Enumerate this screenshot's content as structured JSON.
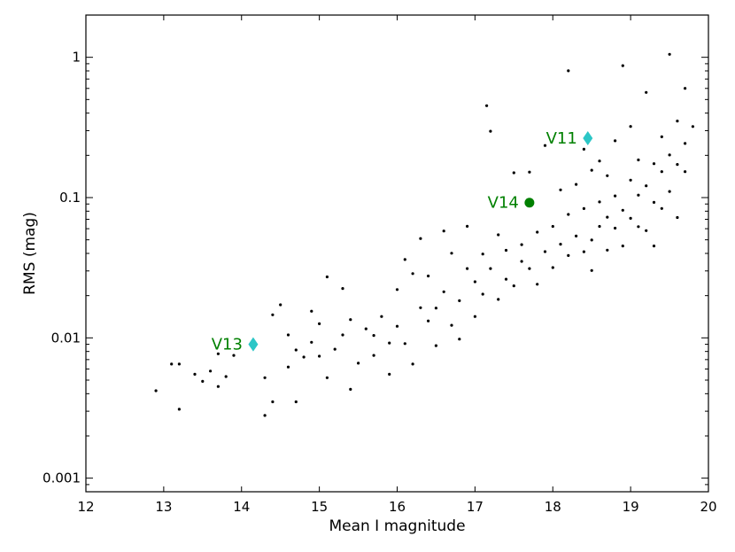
{
  "chart_data": {
    "type": "scatter",
    "xlabel": "Mean I magnitude",
    "ylabel": "RMS (mag)",
    "xlim": [
      12,
      20
    ],
    "ylim": [
      0.0008,
      2.0
    ],
    "yscale": "log",
    "grid": false,
    "xticks": [
      {
        "value": 12,
        "label": "12"
      },
      {
        "value": 13,
        "label": "13"
      },
      {
        "value": 14,
        "label": "14"
      },
      {
        "value": 15,
        "label": "15"
      },
      {
        "value": 16,
        "label": "16"
      },
      {
        "value": 17,
        "label": "17"
      },
      {
        "value": 18,
        "label": "18"
      },
      {
        "value": 19,
        "label": "19"
      },
      {
        "value": 20,
        "label": "20"
      }
    ],
    "yticks": [
      {
        "value": 0.001,
        "label": "0.001"
      },
      {
        "value": 0.01,
        "label": "0.01"
      },
      {
        "value": 0.1,
        "label": "0.1"
      },
      {
        "value": 1,
        "label": "1"
      }
    ],
    "point_color": "#000000",
    "points": [
      [
        12.9,
        0.0042
      ],
      [
        13.1,
        0.0065
      ],
      [
        13.2,
        0.0065
      ],
      [
        13.2,
        0.0031
      ],
      [
        13.4,
        0.0055
      ],
      [
        13.5,
        0.0049
      ],
      [
        13.6,
        0.0058
      ],
      [
        13.7,
        0.0077
      ],
      [
        13.7,
        0.0045
      ],
      [
        13.8,
        0.0053
      ],
      [
        13.9,
        0.0075
      ],
      [
        14.3,
        0.0052
      ],
      [
        14.3,
        0.0028
      ],
      [
        14.4,
        0.0035
      ],
      [
        14.4,
        0.0146
      ],
      [
        14.5,
        0.0172
      ],
      [
        14.6,
        0.0105
      ],
      [
        14.6,
        0.0062
      ],
      [
        14.7,
        0.0082
      ],
      [
        14.7,
        0.0035
      ],
      [
        14.8,
        0.0073
      ],
      [
        14.9,
        0.0093
      ],
      [
        14.9,
        0.0155
      ],
      [
        15.0,
        0.0074
      ],
      [
        15.0,
        0.0126
      ],
      [
        15.1,
        0.0052
      ],
      [
        15.1,
        0.0272
      ],
      [
        15.2,
        0.0083
      ],
      [
        15.3,
        0.0225
      ],
      [
        15.3,
        0.0105
      ],
      [
        15.4,
        0.0043
      ],
      [
        15.4,
        0.0135
      ],
      [
        15.5,
        0.0066
      ],
      [
        15.6,
        0.0116
      ],
      [
        15.7,
        0.0075
      ],
      [
        15.7,
        0.0104
      ],
      [
        15.8,
        0.0142
      ],
      [
        15.9,
        0.0092
      ],
      [
        15.9,
        0.0055
      ],
      [
        16.0,
        0.0121
      ],
      [
        16.0,
        0.0221
      ],
      [
        16.1,
        0.0362
      ],
      [
        16.1,
        0.0091
      ],
      [
        16.2,
        0.0287
      ],
      [
        16.2,
        0.0065
      ],
      [
        16.3,
        0.0164
      ],
      [
        16.3,
        0.0511
      ],
      [
        16.4,
        0.0132
      ],
      [
        16.4,
        0.0276
      ],
      [
        16.5,
        0.0088
      ],
      [
        16.5,
        0.0163
      ],
      [
        16.6,
        0.0578
      ],
      [
        16.6,
        0.0213
      ],
      [
        16.7,
        0.0123
      ],
      [
        16.7,
        0.0401
      ],
      [
        16.8,
        0.0184
      ],
      [
        16.8,
        0.0098
      ],
      [
        16.9,
        0.0312
      ],
      [
        16.9,
        0.0624
      ],
      [
        17.0,
        0.0142
      ],
      [
        17.0,
        0.0251
      ],
      [
        17.1,
        0.0396
      ],
      [
        17.1,
        0.0205
      ],
      [
        17.15,
        0.452
      ],
      [
        17.2,
        0.0312
      ],
      [
        17.2,
        0.297
      ],
      [
        17.3,
        0.0188
      ],
      [
        17.3,
        0.0543
      ],
      [
        17.4,
        0.0421
      ],
      [
        17.4,
        0.0262
      ],
      [
        17.5,
        0.1503
      ],
      [
        17.5,
        0.0235
      ],
      [
        17.6,
        0.0351
      ],
      [
        17.6,
        0.0462
      ],
      [
        17.7,
        0.1521
      ],
      [
        17.7,
        0.0312
      ],
      [
        17.8,
        0.0567
      ],
      [
        17.8,
        0.0241
      ],
      [
        17.9,
        0.2351
      ],
      [
        17.9,
        0.0412
      ],
      [
        18.0,
        0.0623
      ],
      [
        18.0,
        0.0317
      ],
      [
        18.1,
        0.0465
      ],
      [
        18.1,
        0.1135
      ],
      [
        18.2,
        0.0386
      ],
      [
        18.2,
        0.8012
      ],
      [
        18.2,
        0.0758
      ],
      [
        18.3,
        0.0532
      ],
      [
        18.3,
        0.1241
      ],
      [
        18.4,
        0.0411
      ],
      [
        18.4,
        0.0835
      ],
      [
        18.4,
        0.2212
      ],
      [
        18.5,
        0.0498
      ],
      [
        18.5,
        0.1567
      ],
      [
        18.5,
        0.0302
      ],
      [
        18.6,
        0.0931
      ],
      [
        18.6,
        0.0623
      ],
      [
        18.6,
        0.1823
      ],
      [
        18.7,
        0.0725
      ],
      [
        18.7,
        0.1432
      ],
      [
        18.7,
        0.0422
      ],
      [
        18.8,
        0.1028
      ],
      [
        18.8,
        0.0605
      ],
      [
        18.8,
        0.2541
      ],
      [
        18.9,
        0.0812
      ],
      [
        18.9,
        0.0452
      ],
      [
        18.9,
        0.8723
      ],
      [
        19.0,
        0.1332
      ],
      [
        19.0,
        0.0712
      ],
      [
        19.0,
        0.3215
      ],
      [
        19.1,
        0.1042
      ],
      [
        19.1,
        0.0621
      ],
      [
        19.1,
        0.1856
      ],
      [
        19.2,
        0.1214
      ],
      [
        19.2,
        0.0581
      ],
      [
        19.2,
        0.5623
      ],
      [
        19.3,
        0.0924
      ],
      [
        19.3,
        0.1745
      ],
      [
        19.3,
        0.0452
      ],
      [
        19.4,
        0.1532
      ],
      [
        19.4,
        0.2712
      ],
      [
        19.4,
        0.0836
      ],
      [
        19.5,
        1.05
      ],
      [
        19.5,
        0.2012
      ],
      [
        19.5,
        0.1105
      ],
      [
        19.6,
        0.1723
      ],
      [
        19.6,
        0.3512
      ],
      [
        19.6,
        0.0721
      ],
      [
        19.7,
        0.2432
      ],
      [
        19.7,
        0.6012
      ],
      [
        19.7,
        0.1531
      ],
      [
        19.8,
        0.3212
      ]
    ],
    "highlights": [
      {
        "label": "V11",
        "x": 18.45,
        "y": 0.265,
        "marker": "diamond",
        "color": "#2cc6c6",
        "label_color": "#008000"
      },
      {
        "label": "V14",
        "x": 17.7,
        "y": 0.092,
        "marker": "circle",
        "color": "#008000",
        "label_color": "#008000"
      },
      {
        "label": "V13",
        "x": 14.15,
        "y": 0.009,
        "marker": "diamond",
        "color": "#2cc6c6",
        "label_color": "#008000"
      }
    ]
  }
}
